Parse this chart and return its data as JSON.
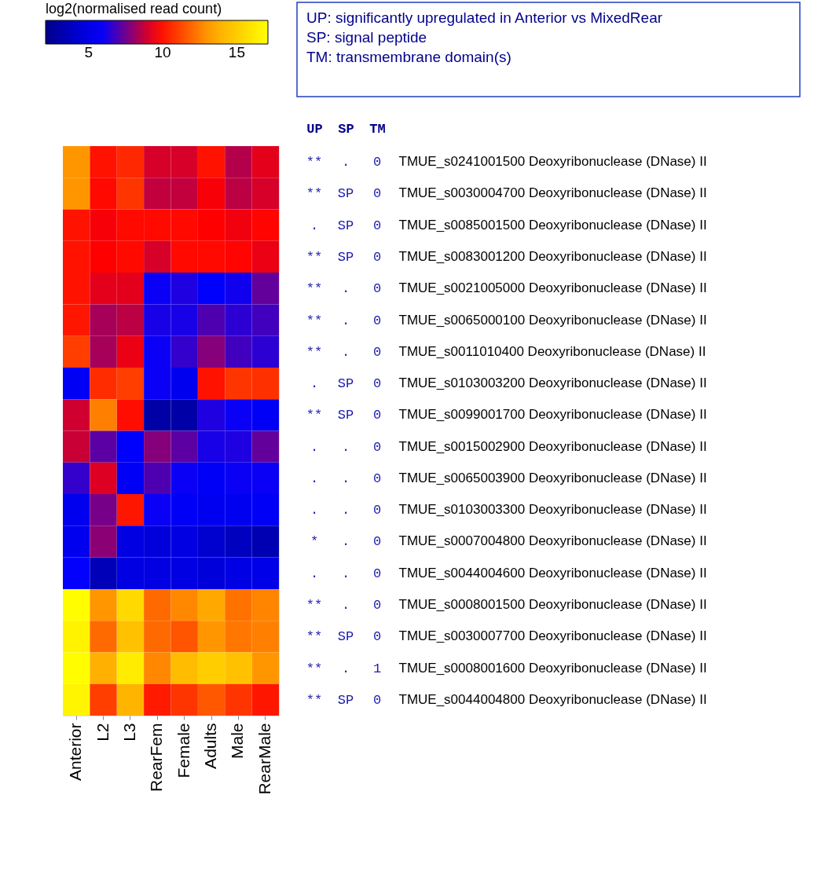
{
  "chart_data": {
    "type": "heatmap",
    "clabel": "log2(normalised read count)",
    "clim": [
      2.1,
      17.1
    ],
    "cticks": [
      5,
      10,
      15
    ],
    "categories": [
      "Anterior",
      "L2",
      "L3",
      "RearFem",
      "Female",
      "Adults",
      "Male",
      "RearMale"
    ],
    "y_categories": [
      null,
      null,
      null,
      null,
      null,
      null,
      null,
      null,
      null,
      null,
      null,
      null,
      null,
      null,
      null,
      null,
      null,
      null
    ],
    "y2_categories": [
      "TMUE_s0241001500 Deoxyribonuclease (DNase) II",
      "TMUE_s0030004700 Deoxyribonuclease (DNase) II",
      "TMUE_s0085001500 Deoxyribonuclease (DNase) II",
      "TMUE_s0083001200 Deoxyribonuclease (DNase) II",
      "TMUE_s0021005000 Deoxyribonuclease (DNase) II",
      "TMUE_s0065000100 Deoxyribonuclease (DNase) II",
      "TMUE_s0011010400 Deoxyribonuclease (DNase) II",
      "TMUE_s0103003200 Deoxyribonuclease (DNase) II",
      "TMUE_s0099001700 Deoxyribonuclease (DNase) II",
      "TMUE_s0015002900 Deoxyribonuclease (DNase) II",
      "TMUE_s0065003900 Deoxyribonuclease (DNase) II",
      "TMUE_s0103003300 Deoxyribonuclease (DNase) II",
      "TMUE_s0007004800 Deoxyribonuclease (DNase) II",
      "TMUE_s0044004600 Deoxyribonuclease (DNase) II",
      "TMUE_s0008001500 Deoxyribonuclease (DNase) II",
      "TMUE_s0030007700 Deoxyribonuclease (DNase) II",
      "TMUE_s0008001600 Deoxyribonuclease (DNase) II",
      "TMUE_s0044004800 Deoxyribonuclease (DNase) II"
    ],
    "cells": [
      [
        13,
        10,
        10.5,
        9,
        9,
        10,
        8.5,
        9.2
      ],
      [
        13,
        9.8,
        10.8,
        8.7,
        8.7,
        9.5,
        8.6,
        9
      ],
      [
        10,
        9.5,
        9.8,
        9.8,
        9.8,
        9.6,
        9.4,
        9.7
      ],
      [
        10,
        9.6,
        9.8,
        9,
        9.8,
        9.8,
        9.7,
        9.3
      ],
      [
        10,
        9.2,
        9.2,
        6,
        6.3,
        5.8,
        6.1,
        7.3
      ],
      [
        10.1,
        8.3,
        8.6,
        6.2,
        6.2,
        7,
        6.5,
        6.8
      ],
      [
        11,
        8.3,
        9.3,
        6,
        6.6,
        7.8,
        6.8,
        6.5
      ],
      [
        5.5,
        10.6,
        11,
        6,
        5.3,
        10,
        10.8,
        10.7
      ],
      [
        8.9,
        12.5,
        9.9,
        3,
        3,
        6.3,
        6,
        5.5
      ],
      [
        8.8,
        7.2,
        5.8,
        7.8,
        7.2,
        6.2,
        6.3,
        7.3
      ],
      [
        6.6,
        9.1,
        5.5,
        7,
        6,
        5.6,
        6,
        6
      ],
      [
        5.3,
        7.6,
        10.1,
        6,
        5.6,
        5.4,
        5.4,
        5.6
      ],
      [
        5.3,
        7.9,
        4.9,
        4.7,
        4.9,
        4.3,
        3.8,
        3.4
      ],
      [
        5.9,
        3.6,
        4.9,
        4.9,
        4.9,
        4.7,
        5,
        5.1
      ],
      [
        17,
        13,
        15.5,
        12,
        12.7,
        13.5,
        12.2,
        12.6
      ],
      [
        16.6,
        12,
        14.5,
        12,
        11.5,
        13,
        12.3,
        12.5
      ],
      [
        17,
        13.8,
        16.3,
        12.7,
        14.3,
        15,
        14.5,
        13
      ],
      [
        16.7,
        11,
        14,
        10.2,
        10.8,
        11.6,
        10.8,
        10.1
      ]
    ],
    "annotations": [
      "UP: significantly upregulated in Anterior vs MixedRear",
      "SP: signal peptide",
      "TM: transmembrane domain(s)",
      "UP",
      "SP",
      "TM",
      "**",
      ".",
      "0",
      "**",
      "SP",
      "0",
      ".",
      "SP",
      "0",
      "**",
      "SP",
      "0",
      "**",
      ".",
      "0",
      "**",
      ".",
      "0",
      "**",
      ".",
      "0",
      ".",
      "SP",
      "0",
      "**",
      "SP",
      "0",
      ".",
      ".",
      "0",
      ".",
      ".",
      "0",
      ".",
      ".",
      "0",
      "*",
      ".",
      "0",
      ".",
      ".",
      "0",
      "**",
      ".",
      "0",
      "**",
      "SP",
      "0",
      "**",
      ".",
      "1",
      "**",
      "SP",
      "0"
    ]
  }
}
